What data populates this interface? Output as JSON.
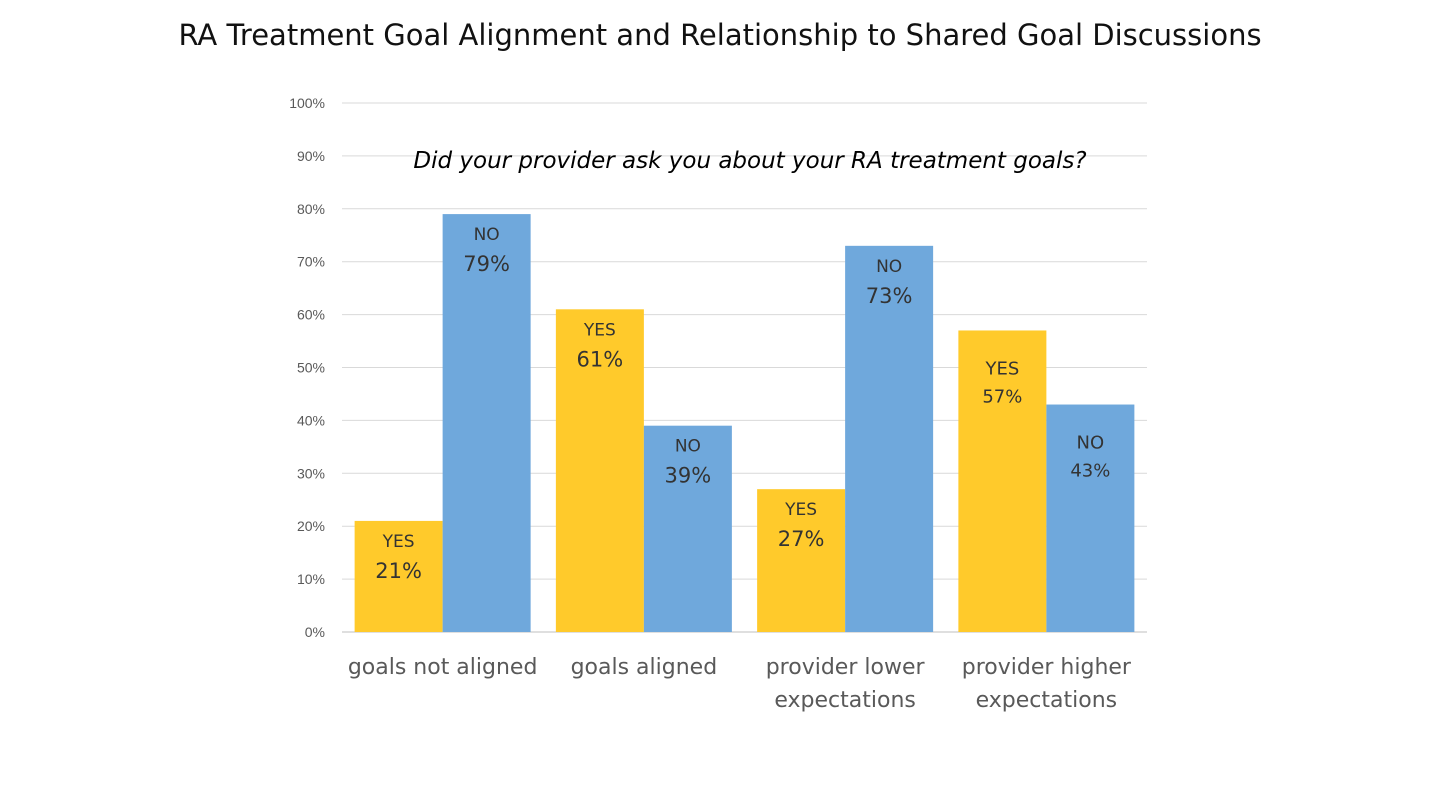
{
  "chart_data": {
    "type": "bar",
    "title": "RA Treatment Goal Alignment and Relationship to Shared Goal Discussions",
    "annotation": "Did your provider ask you about your RA treatment goals?",
    "categories": [
      [
        "goals not aligned"
      ],
      [
        "goals aligned"
      ],
      [
        "provider lower",
        "expectations"
      ],
      [
        "provider higher",
        "expectations"
      ]
    ],
    "series": [
      {
        "name": "YES",
        "color": "#FFCA2B",
        "values": [
          21,
          61,
          27,
          57
        ],
        "value_labels": [
          "21%",
          "61%",
          "27%",
          "57%"
        ]
      },
      {
        "name": "NO",
        "color": "#6FA8DC",
        "values": [
          79,
          39,
          73,
          43
        ],
        "value_labels": [
          "79%",
          "39%",
          "73%",
          "43%"
        ]
      }
    ],
    "ylim": [
      0,
      100
    ],
    "yticks": [
      "0%",
      "10%",
      "20%",
      "30%",
      "40%",
      "50%",
      "60%",
      "70%",
      "80%",
      "90%",
      "100%"
    ],
    "grid": true,
    "xlabel": "",
    "ylabel": ""
  }
}
